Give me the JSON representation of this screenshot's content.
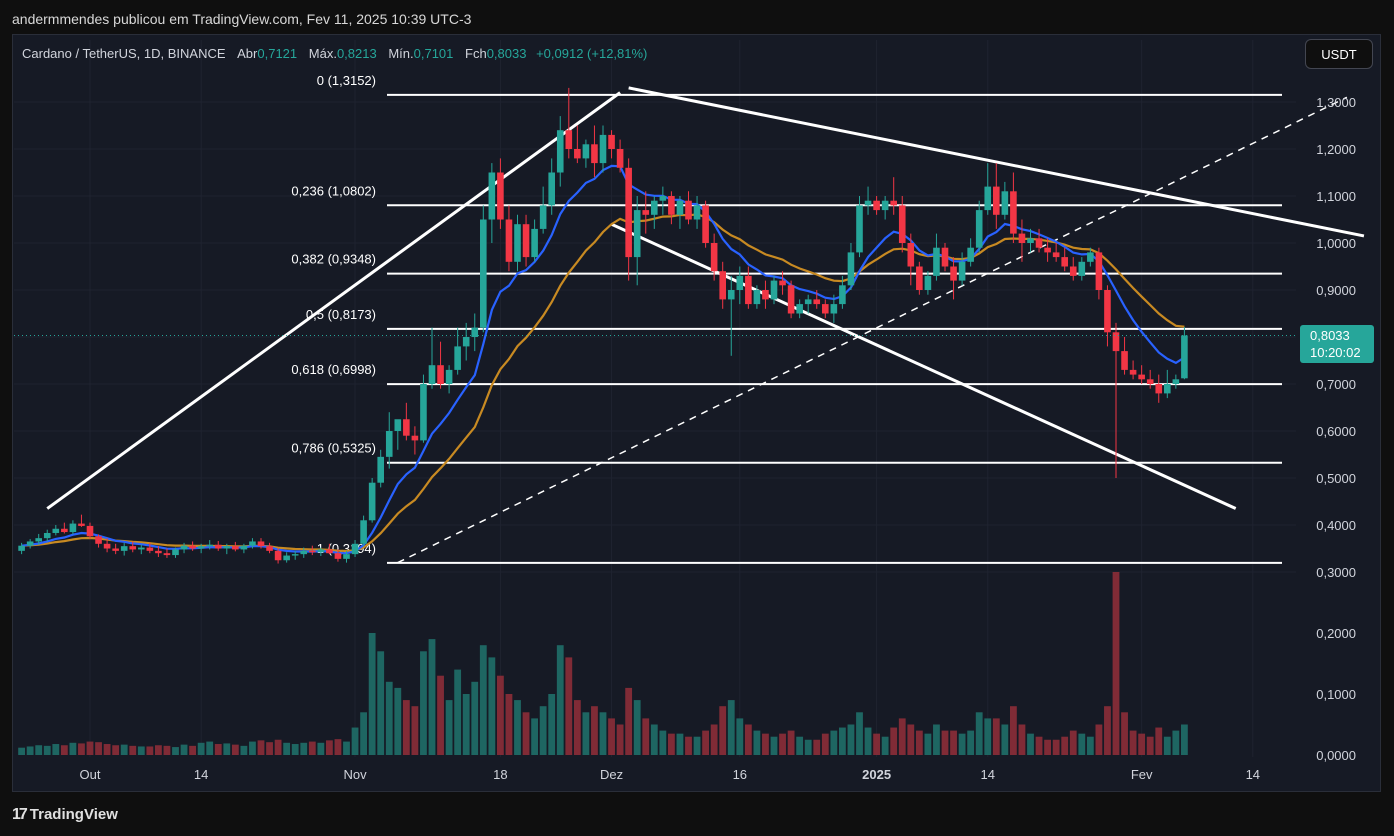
{
  "caption": "andermmendes publicou em TradingView.com, Fev 11, 2025 10:39 UTC-3",
  "legend": {
    "symbol": "Cardano / TetherUS, 1D, BINANCE",
    "open_label": "Abr",
    "open": "0,7121",
    "high_label": "Máx.",
    "high": "0,8213",
    "low_label": "Mín.",
    "low": "0,7101",
    "close_label": "Fch",
    "close": "0,8033",
    "change": "+0,0912 (+12,81%)"
  },
  "currency_button": "USDT",
  "last_price": {
    "price": "0,8033",
    "countdown": "10:20:02",
    "value": 0.8033
  },
  "brand": {
    "logo": "17",
    "name": "TradingView"
  },
  "colors": {
    "up": "#26a69a",
    "down": "#f23645",
    "ema_fast": "#2962ff",
    "ema_slow": "#c88a22",
    "background": "#161a25"
  },
  "chart_data": {
    "type": "candlestick",
    "y_axis_labels": [
      "1,3000",
      "1,2000",
      "1,1000",
      "1,0000",
      "0,9000",
      "0,8000",
      "0,7000",
      "0,6000",
      "0,5000",
      "0,4000",
      "0,3000",
      "0,2000",
      "0,1000",
      "0,0000"
    ],
    "price_ticks": [
      1.3,
      1.2,
      1.1,
      1.0,
      0.9,
      0.8,
      0.7,
      0.6,
      0.5,
      0.4,
      0.3
    ],
    "volume_ticks": [
      0.2,
      0.1,
      0.0
    ],
    "x_axis_labels": [
      {
        "label": "Out",
        "day": 1,
        "bold": false
      },
      {
        "label": "14",
        "day": 14,
        "bold": false
      },
      {
        "label": "Nov",
        "day": 32,
        "bold": false
      },
      {
        "label": "18",
        "day": 49,
        "bold": false
      },
      {
        "label": "Dez",
        "day": 62,
        "bold": false
      },
      {
        "label": "16",
        "day": 77,
        "bold": false
      },
      {
        "label": "2025",
        "day": 93,
        "bold": true
      },
      {
        "label": "14",
        "day": 106,
        "bold": false
      },
      {
        "label": "Fev",
        "day": 124,
        "bold": false
      },
      {
        "label": "14",
        "day": 137,
        "bold": false
      }
    ],
    "fibonacci": [
      {
        "label": "0 (1,3152)",
        "value": 1.3152
      },
      {
        "label": "0,236 (1,0802)",
        "value": 1.0802
      },
      {
        "label": "0,382 (0,9348)",
        "value": 0.9348
      },
      {
        "label": "0,5 (0,8173)",
        "value": 0.8173
      },
      {
        "label": "0,618 (0,6998)",
        "value": 0.6998
      },
      {
        "label": "0,786 (0,5325)",
        "value": 0.5325
      },
      {
        "label": "1 (0,3194)",
        "value": 0.3194
      }
    ],
    "trendlines": [
      {
        "style": "solid",
        "from": [
          -4,
          0.435
        ],
        "to": [
          63,
          1.32
        ]
      },
      {
        "style": "solid",
        "from": [
          64,
          1.33
        ],
        "to": [
          150,
          1.015
        ]
      },
      {
        "style": "solid",
        "from": [
          62,
          1.04
        ],
        "to": [
          135,
          0.435
        ]
      },
      {
        "style": "dashed",
        "from": [
          37,
          0.32
        ],
        "to": [
          148,
          1.31
        ]
      }
    ],
    "candles_ohlcv": [
      [
        0.345,
        0.362,
        0.338,
        0.356,
        0.012
      ],
      [
        0.356,
        0.37,
        0.35,
        0.365,
        0.014
      ],
      [
        0.365,
        0.381,
        0.358,
        0.372,
        0.016
      ],
      [
        0.372,
        0.39,
        0.365,
        0.383,
        0.015
      ],
      [
        0.383,
        0.4,
        0.378,
        0.392,
        0.018
      ],
      [
        0.392,
        0.405,
        0.382,
        0.385,
        0.016
      ],
      [
        0.385,
        0.41,
        0.38,
        0.403,
        0.02
      ],
      [
        0.403,
        0.422,
        0.396,
        0.398,
        0.019
      ],
      [
        0.398,
        0.405,
        0.37,
        0.376,
        0.022
      ],
      [
        0.376,
        0.38,
        0.352,
        0.36,
        0.021
      ],
      [
        0.36,
        0.372,
        0.342,
        0.35,
        0.018
      ],
      [
        0.35,
        0.36,
        0.338,
        0.345,
        0.016
      ],
      [
        0.345,
        0.362,
        0.335,
        0.355,
        0.017
      ],
      [
        0.355,
        0.365,
        0.342,
        0.348,
        0.015
      ],
      [
        0.348,
        0.358,
        0.338,
        0.352,
        0.014
      ],
      [
        0.352,
        0.362,
        0.34,
        0.345,
        0.014
      ],
      [
        0.345,
        0.355,
        0.332,
        0.34,
        0.016
      ],
      [
        0.34,
        0.35,
        0.33,
        0.336,
        0.015
      ],
      [
        0.336,
        0.352,
        0.33,
        0.348,
        0.013
      ],
      [
        0.348,
        0.362,
        0.34,
        0.356,
        0.017
      ],
      [
        0.356,
        0.365,
        0.345,
        0.35,
        0.015
      ],
      [
        0.35,
        0.36,
        0.34,
        0.355,
        0.02
      ],
      [
        0.355,
        0.368,
        0.348,
        0.358,
        0.022
      ],
      [
        0.358,
        0.366,
        0.345,
        0.35,
        0.018
      ],
      [
        0.35,
        0.36,
        0.338,
        0.355,
        0.019
      ],
      [
        0.355,
        0.364,
        0.344,
        0.348,
        0.017
      ],
      [
        0.348,
        0.36,
        0.34,
        0.356,
        0.015
      ],
      [
        0.356,
        0.372,
        0.35,
        0.365,
        0.022
      ],
      [
        0.365,
        0.372,
        0.35,
        0.355,
        0.024
      ],
      [
        0.355,
        0.362,
        0.34,
        0.345,
        0.021
      ],
      [
        0.345,
        0.35,
        0.318,
        0.325,
        0.025
      ],
      [
        0.325,
        0.342,
        0.32,
        0.335,
        0.02
      ],
      [
        0.335,
        0.345,
        0.326,
        0.338,
        0.018
      ],
      [
        0.338,
        0.352,
        0.33,
        0.345,
        0.02
      ],
      [
        0.345,
        0.356,
        0.336,
        0.342,
        0.022
      ],
      [
        0.342,
        0.352,
        0.334,
        0.348,
        0.02
      ],
      [
        0.348,
        0.36,
        0.338,
        0.34,
        0.024
      ],
      [
        0.34,
        0.348,
        0.322,
        0.328,
        0.026
      ],
      [
        0.328,
        0.345,
        0.32,
        0.338,
        0.022
      ],
      [
        0.338,
        0.368,
        0.332,
        0.36,
        0.045
      ],
      [
        0.36,
        0.42,
        0.355,
        0.41,
        0.07
      ],
      [
        0.41,
        0.5,
        0.405,
        0.49,
        0.2
      ],
      [
        0.49,
        0.56,
        0.48,
        0.545,
        0.17
      ],
      [
        0.545,
        0.64,
        0.52,
        0.6,
        0.12
      ],
      [
        0.6,
        0.62,
        0.56,
        0.625,
        0.11
      ],
      [
        0.625,
        0.66,
        0.58,
        0.59,
        0.09
      ],
      [
        0.59,
        0.61,
        0.55,
        0.58,
        0.08
      ],
      [
        0.58,
        0.72,
        0.575,
        0.7,
        0.17
      ],
      [
        0.7,
        0.82,
        0.69,
        0.74,
        0.19
      ],
      [
        0.74,
        0.79,
        0.69,
        0.7,
        0.13
      ],
      [
        0.7,
        0.74,
        0.68,
        0.73,
        0.09
      ],
      [
        0.73,
        0.82,
        0.72,
        0.78,
        0.14
      ],
      [
        0.78,
        0.83,
        0.75,
        0.8,
        0.1
      ],
      [
        0.8,
        0.85,
        0.77,
        0.82,
        0.12
      ],
      [
        0.82,
        1.08,
        0.81,
        1.05,
        0.18
      ],
      [
        1.05,
        1.17,
        1.0,
        1.15,
        0.16
      ],
      [
        1.15,
        1.18,
        1.03,
        1.05,
        0.13
      ],
      [
        1.05,
        1.08,
        0.94,
        0.96,
        0.1
      ],
      [
        0.96,
        1.06,
        0.94,
        1.04,
        0.09
      ],
      [
        1.04,
        1.06,
        0.95,
        0.97,
        0.07
      ],
      [
        0.97,
        1.05,
        0.96,
        1.03,
        0.06
      ],
      [
        1.03,
        1.12,
        1.02,
        1.08,
        0.08
      ],
      [
        1.08,
        1.18,
        1.06,
        1.15,
        0.1
      ],
      [
        1.15,
        1.27,
        1.12,
        1.24,
        0.18
      ],
      [
        1.24,
        1.33,
        1.18,
        1.2,
        0.16
      ],
      [
        1.2,
        1.25,
        1.17,
        1.18,
        0.09
      ],
      [
        1.18,
        1.22,
        1.16,
        1.21,
        0.07
      ],
      [
        1.21,
        1.25,
        1.14,
        1.17,
        0.08
      ],
      [
        1.17,
        1.25,
        1.15,
        1.23,
        0.07
      ],
      [
        1.23,
        1.24,
        1.18,
        1.2,
        0.06
      ],
      [
        1.2,
        1.22,
        1.15,
        1.16,
        0.05
      ],
      [
        1.16,
        1.18,
        0.92,
        0.97,
        0.11
      ],
      [
        0.97,
        1.1,
        0.91,
        1.07,
        0.09
      ],
      [
        1.07,
        1.11,
        1.02,
        1.06,
        0.06
      ],
      [
        1.06,
        1.1,
        1.03,
        1.09,
        0.05
      ],
      [
        1.09,
        1.12,
        1.06,
        1.1,
        0.04
      ],
      [
        1.1,
        1.11,
        1.04,
        1.06,
        0.035
      ],
      [
        1.06,
        1.1,
        1.03,
        1.09,
        0.035
      ],
      [
        1.09,
        1.11,
        1.04,
        1.05,
        0.03
      ],
      [
        1.05,
        1.1,
        1.03,
        1.08,
        0.03
      ],
      [
        1.08,
        1.09,
        0.99,
        1.0,
        0.04
      ],
      [
        1.0,
        1.02,
        0.92,
        0.94,
        0.05
      ],
      [
        0.94,
        0.96,
        0.86,
        0.88,
        0.08
      ],
      [
        0.88,
        0.93,
        0.76,
        0.9,
        0.09
      ],
      [
        0.9,
        0.95,
        0.87,
        0.93,
        0.06
      ],
      [
        0.93,
        0.95,
        0.86,
        0.87,
        0.05
      ],
      [
        0.87,
        0.91,
        0.86,
        0.9,
        0.04
      ],
      [
        0.9,
        0.92,
        0.86,
        0.88,
        0.035
      ],
      [
        0.88,
        0.93,
        0.87,
        0.92,
        0.03
      ],
      [
        0.92,
        0.94,
        0.89,
        0.91,
        0.035
      ],
      [
        0.91,
        0.92,
        0.84,
        0.85,
        0.04
      ],
      [
        0.85,
        0.88,
        0.84,
        0.87,
        0.03
      ],
      [
        0.87,
        0.89,
        0.85,
        0.88,
        0.025
      ],
      [
        0.88,
        0.9,
        0.86,
        0.87,
        0.025
      ],
      [
        0.87,
        0.88,
        0.84,
        0.85,
        0.035
      ],
      [
        0.85,
        0.89,
        0.83,
        0.87,
        0.04
      ],
      [
        0.87,
        0.93,
        0.86,
        0.91,
        0.045
      ],
      [
        0.91,
        1.0,
        0.9,
        0.98,
        0.05
      ],
      [
        0.98,
        1.1,
        0.97,
        1.08,
        0.07
      ],
      [
        1.08,
        1.12,
        1.06,
        1.09,
        0.045
      ],
      [
        1.09,
        1.1,
        1.06,
        1.07,
        0.035
      ],
      [
        1.07,
        1.1,
        1.05,
        1.09,
        0.03
      ],
      [
        1.09,
        1.14,
        1.06,
        1.08,
        0.045
      ],
      [
        1.08,
        1.1,
        0.98,
        1.0,
        0.06
      ],
      [
        1.0,
        1.02,
        0.91,
        0.95,
        0.05
      ],
      [
        0.95,
        0.96,
        0.89,
        0.9,
        0.04
      ],
      [
        0.9,
        0.94,
        0.89,
        0.93,
        0.035
      ],
      [
        0.93,
        1.02,
        0.92,
        0.99,
        0.05
      ],
      [
        0.99,
        1.0,
        0.94,
        0.95,
        0.04
      ],
      [
        0.95,
        0.97,
        0.88,
        0.92,
        0.04
      ],
      [
        0.92,
        0.98,
        0.91,
        0.96,
        0.035
      ],
      [
        0.96,
        1.01,
        0.95,
        0.99,
        0.04
      ],
      [
        0.99,
        1.09,
        0.98,
        1.07,
        0.07
      ],
      [
        1.07,
        1.17,
        1.06,
        1.12,
        0.06
      ],
      [
        1.12,
        1.17,
        1.03,
        1.06,
        0.06
      ],
      [
        1.06,
        1.13,
        1.05,
        1.11,
        0.05
      ],
      [
        1.11,
        1.15,
        1.0,
        1.02,
        0.08
      ],
      [
        1.02,
        1.05,
        0.96,
        1.0,
        0.05
      ],
      [
        1.0,
        1.03,
        0.98,
        1.01,
        0.035
      ],
      [
        1.01,
        1.03,
        0.98,
        0.99,
        0.03
      ],
      [
        0.99,
        1.01,
        0.96,
        0.98,
        0.025
      ],
      [
        0.98,
        1.0,
        0.96,
        0.97,
        0.025
      ],
      [
        0.97,
        0.99,
        0.94,
        0.95,
        0.03
      ],
      [
        0.95,
        0.97,
        0.92,
        0.93,
        0.04
      ],
      [
        0.93,
        0.97,
        0.92,
        0.96,
        0.035
      ],
      [
        0.96,
        0.99,
        0.95,
        0.98,
        0.03
      ],
      [
        0.98,
        0.99,
        0.88,
        0.9,
        0.05
      ],
      [
        0.9,
        0.91,
        0.78,
        0.81,
        0.08
      ],
      [
        0.81,
        0.83,
        0.5,
        0.77,
        0.3
      ],
      [
        0.77,
        0.8,
        0.72,
        0.73,
        0.07
      ],
      [
        0.73,
        0.75,
        0.71,
        0.72,
        0.04
      ],
      [
        0.72,
        0.74,
        0.7,
        0.71,
        0.035
      ],
      [
        0.71,
        0.73,
        0.69,
        0.7,
        0.03
      ],
      [
        0.7,
        0.72,
        0.66,
        0.68,
        0.045
      ],
      [
        0.68,
        0.73,
        0.67,
        0.7,
        0.03
      ],
      [
        0.7,
        0.72,
        0.69,
        0.71,
        0.04
      ],
      [
        0.7121,
        0.8213,
        0.7101,
        0.8033,
        0.05
      ]
    ]
  }
}
